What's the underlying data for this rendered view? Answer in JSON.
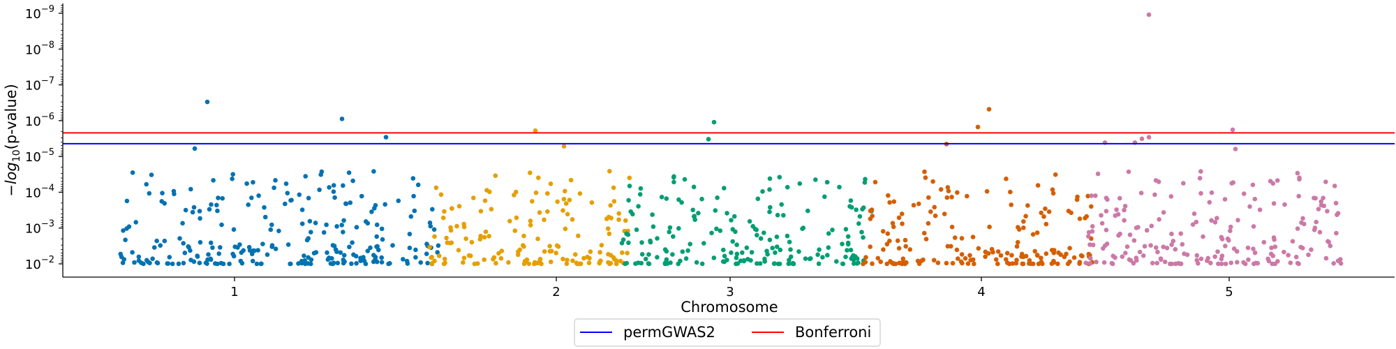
{
  "chart_data": {
    "type": "scatter",
    "title": "",
    "xlabel": "Chromosome",
    "ylabel": "−log10(p-value)",
    "ylabel_parts": {
      "pre": "−",
      "log": "log",
      "sub": "10",
      "post": "(p-value)"
    },
    "y_scale": "log-reversed",
    "ylim": [
      0.02,
      7.5e-10
    ],
    "y_ticks": [
      {
        "value": 0.01,
        "base": "10",
        "exp": "−2"
      },
      {
        "value": 0.001,
        "base": "10",
        "exp": "−3"
      },
      {
        "value": 0.0001,
        "base": "10",
        "exp": "−4"
      },
      {
        "value": 1e-05,
        "base": "10",
        "exp": "−5"
      },
      {
        "value": 1e-06,
        "base": "10",
        "exp": "−6"
      },
      {
        "value": 1e-07,
        "base": "10",
        "exp": "−7"
      },
      {
        "value": 1e-08,
        "base": "10",
        "exp": "−8"
      },
      {
        "value": 1e-09,
        "base": "10",
        "exp": "−9"
      }
    ],
    "x_ticks": [
      {
        "label": "1",
        "pos": 246
      },
      {
        "label": "2",
        "pos": 707
      },
      {
        "label": "3",
        "pos": 956
      },
      {
        "label": "4",
        "pos": 1316
      },
      {
        "label": "5",
        "pos": 1671
      }
    ],
    "xlim": [
      0,
      1908
    ],
    "chromosomes": [
      {
        "name": "1",
        "start": 80,
        "end": 540,
        "color": "#0072b2"
      },
      {
        "name": "2",
        "start": 525,
        "end": 815,
        "color": "#e69f00"
      },
      {
        "name": "3",
        "start": 800,
        "end": 1160,
        "color": "#009e73"
      },
      {
        "name": "4",
        "start": 1145,
        "end": 1475,
        "color": "#d55e00"
      },
      {
        "name": "5",
        "start": 1465,
        "end": 1835,
        "color": "#cc79a7"
      }
    ],
    "top_hits": [
      {
        "chrom": "1",
        "x": 207,
        "p": 3e-07
      },
      {
        "chrom": "1",
        "x": 400,
        "p": 8.9e-07
      },
      {
        "chrom": "1",
        "x": 463,
        "p": 2.9e-06
      },
      {
        "chrom": "1",
        "x": 189,
        "p": 6e-06
      },
      {
        "chrom": "2",
        "x": 677,
        "p": 1.9e-06
      },
      {
        "chrom": "2",
        "x": 718,
        "p": 5.2e-06
      },
      {
        "chrom": "3",
        "x": 933,
        "p": 1.1e-06
      },
      {
        "chrom": "3",
        "x": 925,
        "p": 3.3e-06
      },
      {
        "chrom": "4",
        "x": 1327,
        "p": 4.8e-07
      },
      {
        "chrom": "4",
        "x": 1311,
        "p": 1.5e-06
      },
      {
        "chrom": "4",
        "x": 1266,
        "p": 4.5e-06
      },
      {
        "chrom": "5",
        "x": 1556,
        "p": 1.1e-09
      },
      {
        "chrom": "5",
        "x": 1676,
        "p": 1.8e-06
      },
      {
        "chrom": "5",
        "x": 1556,
        "p": 2.9e-06
      },
      {
        "chrom": "5",
        "x": 1546,
        "p": 3.2e-06
      },
      {
        "chrom": "5",
        "x": 1493,
        "p": 4.1e-06
      },
      {
        "chrom": "5",
        "x": 1536,
        "p": 4.1e-06
      },
      {
        "chrom": "5",
        "x": 1680,
        "p": 6.2e-06
      }
    ],
    "thresholds": [
      {
        "name": "permGWAS2",
        "p": 4.4e-06,
        "color": "#0000ff"
      },
      {
        "name": "Bonferroni",
        "p": 2.2e-06,
        "color": "#ff0000"
      }
    ],
    "legend": {
      "placement": "bottom-center",
      "entries": [
        "permGWAS2",
        "Bonferroni"
      ]
    },
    "grid": false
  }
}
